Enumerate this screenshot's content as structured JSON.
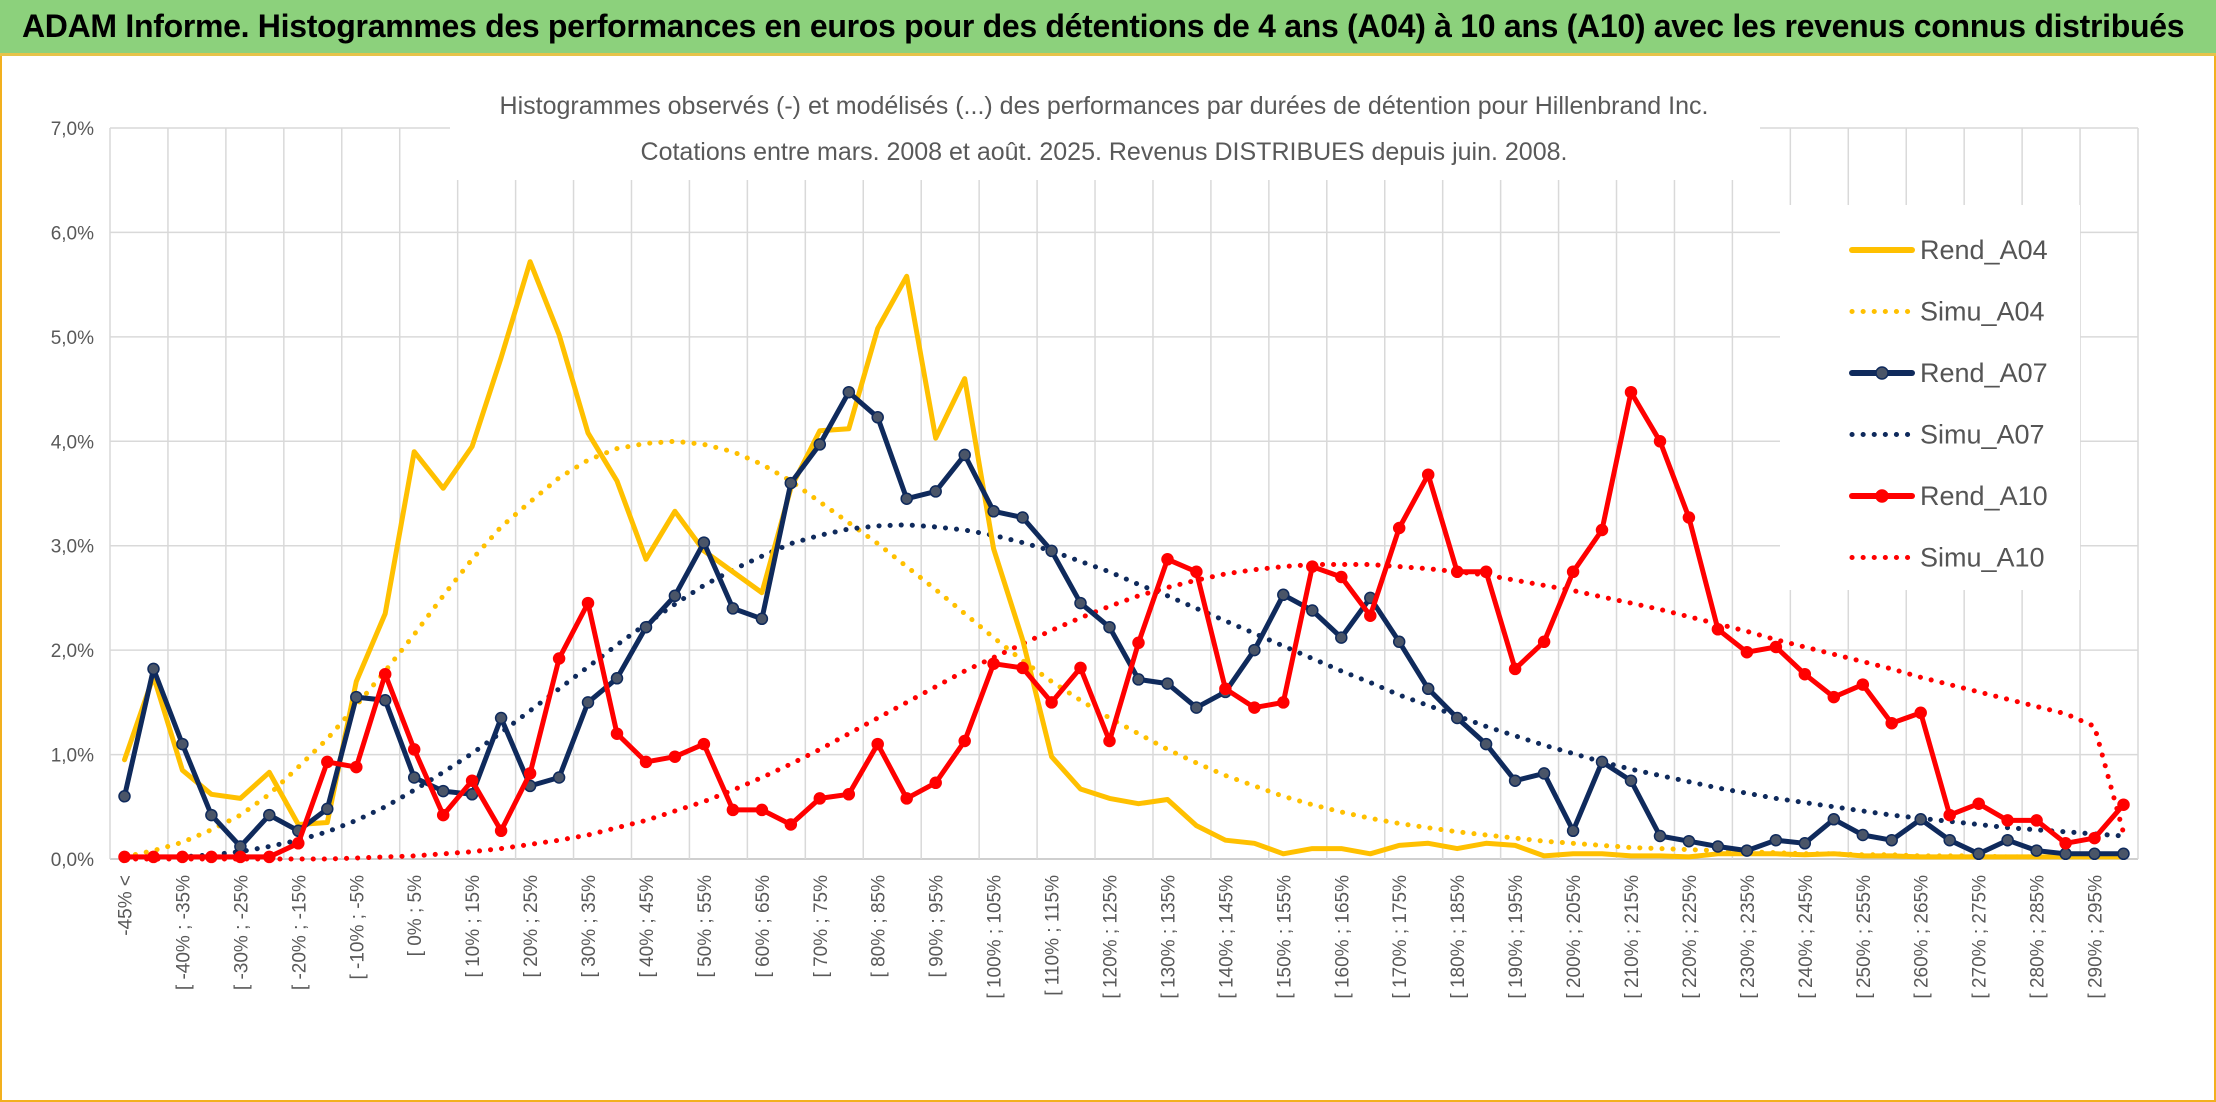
{
  "header": {
    "title": "ADAM Informe. Histogrammes des performances en euros pour des détentions de 4 ans (A04) à 10 ans (A10) avec les revenus connus distribués"
  },
  "colors": {
    "header_bg": "#8cd17c",
    "frame": "#f2b01e",
    "a04": "#ffc000",
    "a07": "#0f2a5c",
    "a10": "#ff0000",
    "grid": "#d9d9d9"
  },
  "chart_data": {
    "type": "line",
    "title": "Histogrammes observés (-) et modélisés (...) des performances par durées de détention pour Hillenbrand Inc.",
    "subtitle": "Cotations entre mars. 2008 et août. 2025. Revenus DISTRIBUES depuis juin. 2008.",
    "ylim": [
      0,
      7
    ],
    "y_ticks": [
      "0,0%",
      "1,0%",
      "2,0%",
      "3,0%",
      "4,0%",
      "5,0%",
      "6,0%",
      "7,0%"
    ],
    "legend_position": "right",
    "grid": true,
    "categories": [
      "-45% <",
      "[ -45% ; -40%",
      "[ -40% ; -35%",
      "[ -35% ; -30%",
      "[ -30% ; -25%",
      "[ -25% ; -20%",
      "[ -20% ; -15%",
      "[ -15% ; -10%",
      "[ -10% ; -5%",
      "[ -5% ; 0%",
      "[ 0% ; 5%",
      "[ 5% ; 10%",
      "[ 10% ; 15%",
      "[ 15% ; 20%",
      "[ 20% ; 25%",
      "[ 25% ; 30%",
      "[ 30% ; 35%",
      "[ 35% ; 40%",
      "[ 40% ; 45%",
      "[ 45% ; 50%",
      "[ 50% ; 55%",
      "[ 55% ; 60%",
      "[ 60% ; 65%",
      "[ 65% ; 70%",
      "[ 70% ; 75%",
      "[ 75% ; 80%",
      "[ 80% ; 85%",
      "[ 85% ; 90%",
      "[ 90% ; 95%",
      "[ 95% ; 100%",
      "[ 100% ; 105%",
      "[ 105% ; 110%",
      "[ 110% ; 115%",
      "[ 115% ; 120%",
      "[ 120% ; 125%",
      "[ 125% ; 130%",
      "[ 130% ; 135%",
      "[ 135% ; 140%",
      "[ 140% ; 145%",
      "[ 145% ; 150%",
      "[ 150% ; 155%",
      "[ 155% ; 160%",
      "[ 160% ; 165%",
      "[ 165% ; 170%",
      "[ 170% ; 175%",
      "[ 175% ; 180%",
      "[ 180% ; 185%",
      "[ 185% ; 190%",
      "[ 190% ; 195%",
      "[ 195% ; 200%",
      "[ 200% ; 205%",
      "[ 205% ; 210%",
      "[ 210% ; 215%",
      "[ 215% ; 220%",
      "[ 220% ; 225%",
      "[ 225% ; 230%",
      "[ 230% ; 235%",
      "[ 235% ; 240%",
      "[ 240% ; 245%",
      "[ 245% ; 250%",
      "[ 250% ; 255%",
      "[ 255% ; 260%",
      "[ 260% ; 265%",
      "[ 265% ; 270%",
      "[ 270% ; 275%",
      "[ 275% ; 280%",
      "[ 280% ; 285%",
      "[ 285% ; 290%",
      "[ 290% ; 295%",
      "[ 295% ; 300%"
    ],
    "x_tick_labels": [
      "-45% <",
      "[ -40% ; -35%",
      "[ -30% ; -25%",
      "[ -20% ; -15%",
      "[ -10% ; -5%",
      "[ 0% ; 5%",
      "[ 10% ; 15%",
      "[ 20% ; 25%",
      "[ 30% ; 35%",
      "[ 40% ; 45%",
      "[ 50% ; 55%",
      "[ 60% ; 65%",
      "[ 70% ; 75%",
      "[ 80% ; 85%",
      "[ 90% ; 95%",
      "[ 100% ; 105%",
      "[ 110% ; 115%",
      "[ 120% ; 125%",
      "[ 130% ; 135%",
      "[ 140% ; 145%",
      "[ 150% ; 155%",
      "[ 160% ; 165%",
      "[ 170% ; 175%",
      "[ 180% ; 185%",
      "[ 190% ; 195%",
      "[ 200% ; 205%",
      "[ 210% ; 215%",
      "[ 220% ; 225%",
      "[ 230% ; 235%",
      "[ 240% ; 245%",
      "[ 250% ; 255%",
      "[ 260% ; 265%",
      "[ 270% ; 275%",
      "[ 280% ; 285%",
      "[ 290% ; 295%"
    ],
    "series": [
      {
        "name": "Rend_A04",
        "style": "solid",
        "color": "#ffc000",
        "markers": false,
        "values": [
          0.95,
          1.75,
          0.85,
          0.62,
          0.58,
          0.83,
          0.33,
          0.35,
          1.7,
          2.35,
          3.9,
          3.55,
          3.95,
          4.8,
          5.72,
          5.02,
          4.08,
          3.62,
          2.87,
          3.33,
          2.95,
          2.75,
          2.55,
          3.55,
          4.1,
          4.12,
          5.08,
          5.58,
          4.03,
          4.6,
          2.97,
          2.1,
          0.98,
          0.67,
          0.58,
          0.53,
          0.57,
          0.32,
          0.18,
          0.15,
          0.05,
          0.1,
          0.1,
          0.05,
          0.13,
          0.15,
          0.1,
          0.15,
          0.13,
          0.03,
          0.05,
          0.05,
          0.03,
          0.03,
          0.02,
          0.05,
          0.05,
          0.05,
          0.04,
          0.05,
          0.03,
          0.03,
          0.02,
          0.02,
          0.02,
          0.02,
          0.02,
          0.02,
          0.02,
          0.02
        ]
      },
      {
        "name": "Simu_A04",
        "style": "dotted",
        "color": "#ffc000",
        "values": [
          0.02,
          0.08,
          0.16,
          0.28,
          0.42,
          0.62,
          0.88,
          1.15,
          1.47,
          1.8,
          2.15,
          2.52,
          2.87,
          3.18,
          3.42,
          3.65,
          3.82,
          3.93,
          3.98,
          4.0,
          3.97,
          3.9,
          3.78,
          3.62,
          3.42,
          3.22,
          3.02,
          2.8,
          2.58,
          2.35,
          2.12,
          1.9,
          1.7,
          1.52,
          1.35,
          1.2,
          1.05,
          0.92,
          0.8,
          0.7,
          0.6,
          0.52,
          0.45,
          0.39,
          0.34,
          0.3,
          0.26,
          0.23,
          0.2,
          0.17,
          0.15,
          0.13,
          0.11,
          0.1,
          0.09,
          0.08,
          0.07,
          0.06,
          0.05,
          0.05,
          0.04,
          0.04,
          0.03,
          0.03,
          0.03,
          0.02,
          0.02,
          0.02,
          0.02,
          0.02
        ]
      },
      {
        "name": "Rend_A07",
        "style": "solid",
        "color": "#0f2a5c",
        "markers": true,
        "values": [
          0.6,
          1.82,
          1.1,
          0.42,
          0.12,
          0.42,
          0.27,
          0.48,
          1.55,
          1.52,
          0.78,
          0.65,
          0.62,
          1.35,
          0.7,
          0.78,
          1.5,
          1.73,
          2.22,
          2.52,
          3.03,
          2.4,
          2.3,
          3.6,
          3.97,
          4.47,
          4.23,
          3.45,
          3.52,
          3.87,
          3.33,
          3.27,
          2.95,
          2.45,
          2.22,
          1.72,
          1.68,
          1.45,
          1.6,
          2.0,
          2.53,
          2.38,
          2.12,
          2.5,
          2.08,
          1.63,
          1.35,
          1.1,
          0.75,
          0.82,
          0.27,
          0.93,
          0.75,
          0.22,
          0.17,
          0.12,
          0.08,
          0.18,
          0.15,
          0.38,
          0.23,
          0.18,
          0.38,
          0.18,
          0.05,
          0.18,
          0.08,
          0.05,
          0.05,
          0.05
        ]
      },
      {
        "name": "Simu_A07",
        "style": "dotted",
        "color": "#0f2a5c",
        "values": [
          0.0,
          0.01,
          0.02,
          0.04,
          0.07,
          0.12,
          0.18,
          0.26,
          0.37,
          0.5,
          0.66,
          0.83,
          1.01,
          1.21,
          1.42,
          1.63,
          1.84,
          2.05,
          2.25,
          2.44,
          2.62,
          2.77,
          2.9,
          3.02,
          3.1,
          3.16,
          3.19,
          3.2,
          3.18,
          3.15,
          3.1,
          3.03,
          2.95,
          2.85,
          2.75,
          2.63,
          2.52,
          2.4,
          2.28,
          2.16,
          2.04,
          1.92,
          1.8,
          1.69,
          1.57,
          1.47,
          1.37,
          1.27,
          1.18,
          1.09,
          1.01,
          0.93,
          0.86,
          0.8,
          0.74,
          0.68,
          0.63,
          0.58,
          0.54,
          0.5,
          0.46,
          0.42,
          0.39,
          0.36,
          0.33,
          0.3,
          0.28,
          0.26,
          0.24,
          0.22
        ]
      },
      {
        "name": "Rend_A10",
        "style": "solid",
        "color": "#ff0000",
        "markers": true,
        "values": [
          0.02,
          0.02,
          0.02,
          0.02,
          0.02,
          0.02,
          0.15,
          0.93,
          0.88,
          1.77,
          1.05,
          0.42,
          0.75,
          0.27,
          0.82,
          1.92,
          2.45,
          1.2,
          0.93,
          0.98,
          1.1,
          0.47,
          0.47,
          0.33,
          0.58,
          0.62,
          1.1,
          0.58,
          0.73,
          1.13,
          1.87,
          1.83,
          1.5,
          1.83,
          1.13,
          2.07,
          2.87,
          2.75,
          1.63,
          1.45,
          1.5,
          2.8,
          2.7,
          2.33,
          3.17,
          3.68,
          2.75,
          2.75,
          1.82,
          2.08,
          2.75,
          3.15,
          4.47,
          4.0,
          3.27,
          2.2,
          1.98,
          2.03,
          1.77,
          1.55,
          1.67,
          1.3,
          1.4,
          0.42,
          0.53,
          0.37,
          0.37,
          0.15,
          0.2,
          0.52
        ]
      },
      {
        "name": "Simu_A10",
        "style": "dotted",
        "color": "#ff0000",
        "values": [
          0.0,
          0.0,
          0.0,
          0.0,
          0.0,
          0.0,
          0.0,
          0.0,
          0.01,
          0.02,
          0.03,
          0.05,
          0.07,
          0.1,
          0.14,
          0.18,
          0.23,
          0.3,
          0.37,
          0.46,
          0.55,
          0.66,
          0.78,
          0.91,
          1.05,
          1.2,
          1.35,
          1.5,
          1.65,
          1.8,
          1.93,
          2.06,
          2.19,
          2.31,
          2.42,
          2.52,
          2.6,
          2.67,
          2.73,
          2.77,
          2.8,
          2.82,
          2.82,
          2.82,
          2.8,
          2.78,
          2.75,
          2.72,
          2.67,
          2.62,
          2.57,
          2.51,
          2.45,
          2.39,
          2.32,
          2.25,
          2.18,
          2.1,
          2.03,
          1.96,
          1.89,
          1.82,
          1.74,
          1.67,
          1.6,
          1.53,
          1.46,
          1.39,
          1.27,
          0.25
        ]
      }
    ]
  }
}
